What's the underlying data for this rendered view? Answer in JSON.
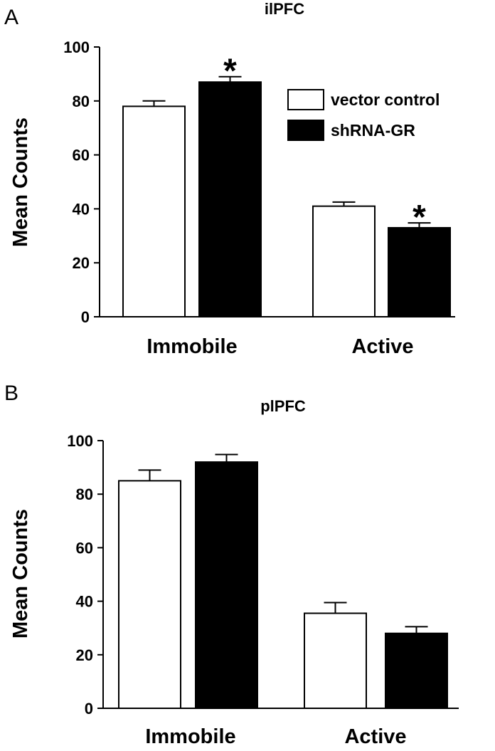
{
  "chart_data": [
    {
      "type": "bar",
      "panel_letter": "A",
      "title": "ilPFC",
      "ylabel": "Mean Counts",
      "xlabel": "",
      "ylim": [
        0,
        100
      ],
      "yticks": [
        "0",
        "20",
        "40",
        "60",
        "80",
        "100"
      ],
      "categories": [
        "Immobile",
        "Active"
      ],
      "series": [
        {
          "name": "vector control",
          "color": "#ffffff",
          "values": [
            78,
            41
          ],
          "errors": [
            2,
            1.5
          ]
        },
        {
          "name": "shRNA-GR",
          "color": "#000000",
          "values": [
            87,
            33
          ],
          "errors": [
            2,
            1.8
          ]
        }
      ],
      "significance": [
        {
          "series": 1,
          "category": 0,
          "mark": "*"
        },
        {
          "series": 1,
          "category": 1,
          "mark": "*"
        }
      ],
      "legend": {
        "placement": "top-right",
        "entries": [
          "vector control",
          "shRNA-GR"
        ]
      },
      "grid": false
    },
    {
      "type": "bar",
      "panel_letter": "B",
      "title": "plPFC",
      "ylabel": "Mean Counts",
      "xlabel": "",
      "ylim": [
        0,
        100
      ],
      "yticks": [
        "0",
        "20",
        "40",
        "60",
        "80",
        "100"
      ],
      "categories": [
        "Immobile",
        "Active"
      ],
      "series": [
        {
          "name": "vector control",
          "color": "#ffffff",
          "values": [
            85,
            35.5
          ],
          "errors": [
            4,
            4
          ]
        },
        {
          "name": "shRNA-GR",
          "color": "#000000",
          "values": [
            92,
            28
          ],
          "errors": [
            2.8,
            2.5
          ]
        }
      ],
      "significance": [],
      "grid": false
    }
  ]
}
